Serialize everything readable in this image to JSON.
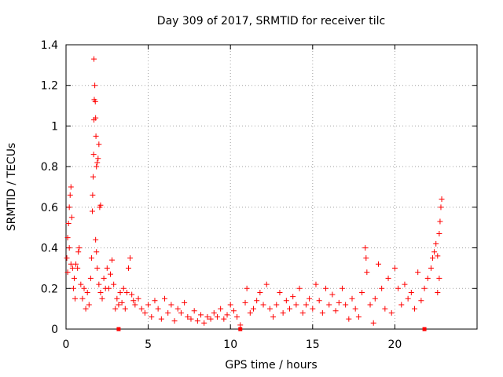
{
  "chart_data": {
    "type": "scatter",
    "title": "Day 309 of 2017, SRMTID for receiver tilc",
    "xlabel": "GPS time / hours",
    "ylabel": "SRMTID / TECUs",
    "xlim": [
      0,
      25
    ],
    "ylim": [
      0,
      1.4
    ],
    "x_ticks": [
      0,
      5,
      10,
      15,
      20
    ],
    "x_tick_labels": [
      "0",
      "5",
      "10",
      "15",
      "20"
    ],
    "y_ticks": [
      0,
      0.2,
      0.4,
      0.6,
      0.8,
      1.0,
      1.2,
      1.4
    ],
    "y_tick_labels": [
      "0",
      "0.2",
      "0.4",
      "0.6",
      "0.8",
      "1",
      "1.2",
      "1.4"
    ],
    "grid": true,
    "marker": "+",
    "color": "#ff0000",
    "series": [
      {
        "name": "SRMTID",
        "points": [
          [
            0.05,
            0.35
          ],
          [
            0.1,
            0.45
          ],
          [
            0.15,
            0.52
          ],
          [
            0.2,
            0.6
          ],
          [
            0.25,
            0.66
          ],
          [
            0.3,
            0.7
          ],
          [
            0.35,
            0.55
          ],
          [
            0.1,
            0.28
          ],
          [
            0.2,
            0.4
          ],
          [
            0.3,
            0.32
          ],
          [
            0.4,
            0.3
          ],
          [
            0.45,
            0.2
          ],
          [
            0.5,
            0.25
          ],
          [
            0.55,
            0.15
          ],
          [
            0.6,
            0.32
          ],
          [
            0.7,
            0.3
          ],
          [
            0.75,
            0.38
          ],
          [
            0.8,
            0.4
          ],
          [
            0.9,
            0.22
          ],
          [
            1.0,
            0.15
          ],
          [
            1.1,
            0.2
          ],
          [
            1.2,
            0.1
          ],
          [
            1.3,
            0.18
          ],
          [
            1.4,
            0.12
          ],
          [
            1.5,
            0.25
          ],
          [
            1.55,
            0.35
          ],
          [
            1.6,
            0.58
          ],
          [
            1.62,
            0.66
          ],
          [
            1.65,
            0.75
          ],
          [
            1.68,
            0.86
          ],
          [
            1.7,
            1.03
          ],
          [
            1.72,
            1.13
          ],
          [
            1.75,
            1.2
          ],
          [
            1.7,
            1.33
          ],
          [
            1.78,
            1.12
          ],
          [
            1.8,
            1.04
          ],
          [
            1.82,
            0.95
          ],
          [
            1.85,
            0.8
          ],
          [
            1.9,
            0.82
          ],
          [
            1.95,
            0.84
          ],
          [
            2.0,
            0.91
          ],
          [
            2.05,
            0.6
          ],
          [
            2.1,
            0.61
          ],
          [
            1.8,
            0.44
          ],
          [
            1.85,
            0.38
          ],
          [
            1.9,
            0.3
          ],
          [
            2.0,
            0.22
          ],
          [
            2.1,
            0.18
          ],
          [
            2.2,
            0.15
          ],
          [
            2.3,
            0.25
          ],
          [
            2.4,
            0.2
          ],
          [
            2.5,
            0.3
          ],
          [
            2.6,
            0.2
          ],
          [
            2.7,
            0.27
          ],
          [
            2.8,
            0.34
          ],
          [
            2.9,
            0.22
          ],
          [
            3.0,
            0.1
          ],
          [
            3.1,
            0.15
          ],
          [
            3.2,
            0.12
          ],
          [
            3.3,
            0.18
          ],
          [
            3.4,
            0.13
          ],
          [
            3.5,
            0.2
          ],
          [
            3.6,
            0.1
          ],
          [
            3.7,
            0.18
          ],
          [
            3.8,
            0.3
          ],
          [
            3.9,
            0.35
          ],
          [
            4.0,
            0.17
          ],
          [
            4.1,
            0.14
          ],
          [
            4.2,
            0.12
          ],
          [
            4.4,
            0.15
          ],
          [
            4.6,
            0.1
          ],
          [
            4.8,
            0.08
          ],
          [
            5.0,
            0.12
          ],
          [
            5.2,
            0.06
          ],
          [
            5.4,
            0.14
          ],
          [
            5.6,
            0.1
          ],
          [
            5.8,
            0.05
          ],
          [
            6.0,
            0.15
          ],
          [
            6.2,
            0.08
          ],
          [
            6.4,
            0.12
          ],
          [
            6.6,
            0.04
          ],
          [
            6.8,
            0.1
          ],
          [
            7.0,
            0.08
          ],
          [
            7.2,
            0.13
          ],
          [
            7.4,
            0.06
          ],
          [
            7.6,
            0.05
          ],
          [
            7.8,
            0.09
          ],
          [
            8.0,
            0.04
          ],
          [
            8.2,
            0.07
          ],
          [
            8.4,
            0.03
          ],
          [
            8.6,
            0.06
          ],
          [
            8.8,
            0.05
          ],
          [
            9.0,
            0.08
          ],
          [
            9.2,
            0.06
          ],
          [
            9.4,
            0.1
          ],
          [
            9.6,
            0.05
          ],
          [
            9.8,
            0.07
          ],
          [
            10.0,
            0.12
          ],
          [
            10.2,
            0.09
          ],
          [
            10.4,
            0.06
          ],
          [
            10.6,
            0.02
          ],
          [
            10.9,
            0.13
          ],
          [
            11.0,
            0.2
          ],
          [
            11.2,
            0.08
          ],
          [
            11.4,
            0.1
          ],
          [
            11.6,
            0.14
          ],
          [
            11.8,
            0.18
          ],
          [
            12.0,
            0.12
          ],
          [
            12.2,
            0.22
          ],
          [
            12.4,
            0.1
          ],
          [
            12.6,
            0.06
          ],
          [
            12.8,
            0.12
          ],
          [
            13.0,
            0.18
          ],
          [
            13.2,
            0.08
          ],
          [
            13.4,
            0.14
          ],
          [
            13.6,
            0.1
          ],
          [
            13.8,
            0.16
          ],
          [
            14.0,
            0.12
          ],
          [
            14.2,
            0.2
          ],
          [
            14.4,
            0.08
          ],
          [
            14.6,
            0.12
          ],
          [
            14.8,
            0.15
          ],
          [
            15.0,
            0.1
          ],
          [
            15.2,
            0.22
          ],
          [
            15.4,
            0.14
          ],
          [
            15.6,
            0.08
          ],
          [
            15.8,
            0.2
          ],
          [
            16.0,
            0.12
          ],
          [
            16.2,
            0.17
          ],
          [
            16.4,
            0.09
          ],
          [
            16.6,
            0.13
          ],
          [
            16.8,
            0.2
          ],
          [
            17.0,
            0.12
          ],
          [
            17.2,
            0.05
          ],
          [
            17.4,
            0.15
          ],
          [
            17.6,
            0.1
          ],
          [
            17.8,
            0.06
          ],
          [
            18.0,
            0.18
          ],
          [
            18.2,
            0.4
          ],
          [
            18.25,
            0.35
          ],
          [
            18.3,
            0.28
          ],
          [
            18.5,
            0.12
          ],
          [
            18.7,
            0.03
          ],
          [
            18.8,
            0.15
          ],
          [
            19.0,
            0.32
          ],
          [
            19.2,
            0.2
          ],
          [
            19.4,
            0.1
          ],
          [
            19.6,
            0.25
          ],
          [
            19.8,
            0.08
          ],
          [
            20.0,
            0.3
          ],
          [
            20.2,
            0.2
          ],
          [
            20.4,
            0.12
          ],
          [
            20.6,
            0.22
          ],
          [
            20.8,
            0.15
          ],
          [
            21.0,
            0.18
          ],
          [
            21.2,
            0.1
          ],
          [
            21.4,
            0.28
          ],
          [
            21.6,
            0.14
          ],
          [
            21.8,
            0.2
          ],
          [
            22.0,
            0.25
          ],
          [
            22.2,
            0.3
          ],
          [
            22.3,
            0.35
          ],
          [
            22.4,
            0.38
          ],
          [
            22.5,
            0.42
          ],
          [
            22.6,
            0.36
          ],
          [
            22.7,
            0.47
          ],
          [
            22.75,
            0.53
          ],
          [
            22.8,
            0.6
          ],
          [
            22.85,
            0.64
          ],
          [
            22.7,
            0.25
          ],
          [
            22.6,
            0.18
          ]
        ]
      }
    ],
    "axis_markers": [
      3.2,
      10.6,
      21.8
    ]
  }
}
